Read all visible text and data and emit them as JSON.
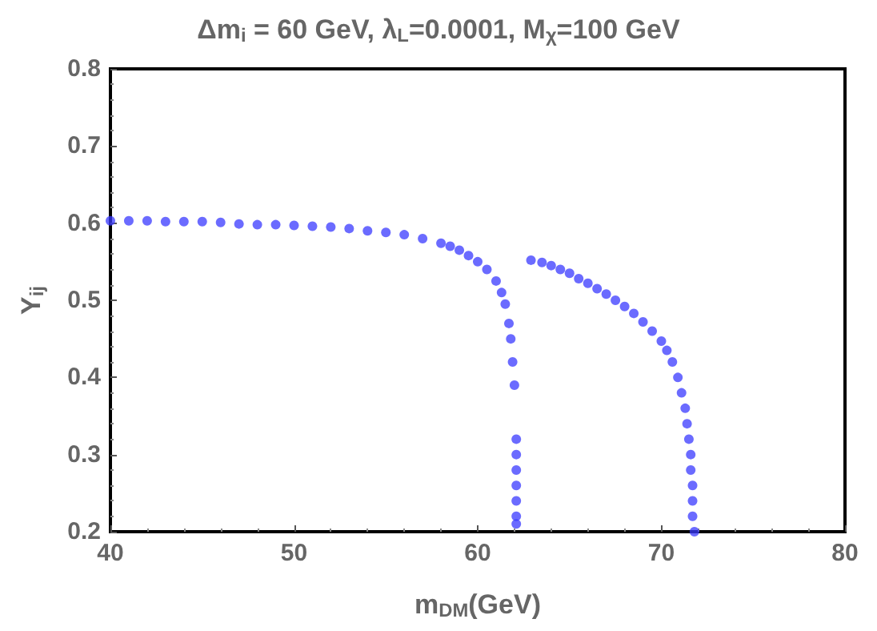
{
  "chart_data": {
    "type": "scatter",
    "title": "Δm$_{i}$ = 60 GeV, λ$_{L}$=0.0001, M$_{χ}$=100 GeV",
    "xlabel": "m$_{DM}$(GeV)",
    "ylabel": "Y$_{ij}$",
    "xlim": [
      40,
      80
    ],
    "xticks": [
      40,
      50,
      60,
      70,
      80
    ],
    "ylim": [
      0.2,
      0.8
    ],
    "yticks": [
      0.2,
      0.3,
      0.4,
      0.5,
      0.6,
      0.7,
      0.8
    ],
    "grid": false,
    "marker": "circle",
    "series": [
      {
        "color": "#3a3aff",
        "x": [
          40,
          41,
          42,
          43,
          44,
          45,
          46,
          47,
          48,
          49,
          50,
          51,
          52,
          53,
          54,
          55,
          56,
          57,
          58,
          58.5,
          59,
          59.5,
          60,
          60.5,
          61,
          61.3,
          61.5,
          61.7,
          61.8,
          61.9,
          62.0,
          62.1,
          62.1,
          62.1,
          62.1,
          62.1,
          62.1,
          62.1
        ],
        "values": [
          0.603,
          0.603,
          0.603,
          0.602,
          0.602,
          0.602,
          0.601,
          0.599,
          0.598,
          0.598,
          0.597,
          0.596,
          0.595,
          0.593,
          0.59,
          0.588,
          0.585,
          0.58,
          0.574,
          0.57,
          0.565,
          0.558,
          0.55,
          0.54,
          0.525,
          0.51,
          0.495,
          0.47,
          0.45,
          0.42,
          0.39,
          0.32,
          0.3,
          0.28,
          0.26,
          0.24,
          0.22,
          0.21
        ]
      },
      {
        "color": "#3a3aff",
        "x": [
          62.9,
          63.5,
          64,
          64.5,
          65,
          65.5,
          66,
          66.5,
          67,
          67.5,
          68,
          68.5,
          69,
          69.5,
          70,
          70.3,
          70.6,
          70.9,
          71.1,
          71.3,
          71.4,
          71.5,
          71.6,
          71.6,
          71.7,
          71.7,
          71.7,
          71.8
        ],
        "values": [
          0.552,
          0.549,
          0.545,
          0.54,
          0.535,
          0.528,
          0.522,
          0.515,
          0.508,
          0.5,
          0.492,
          0.483,
          0.472,
          0.46,
          0.447,
          0.435,
          0.42,
          0.4,
          0.38,
          0.36,
          0.34,
          0.32,
          0.3,
          0.28,
          0.26,
          0.24,
          0.22,
          0.2
        ]
      }
    ]
  }
}
